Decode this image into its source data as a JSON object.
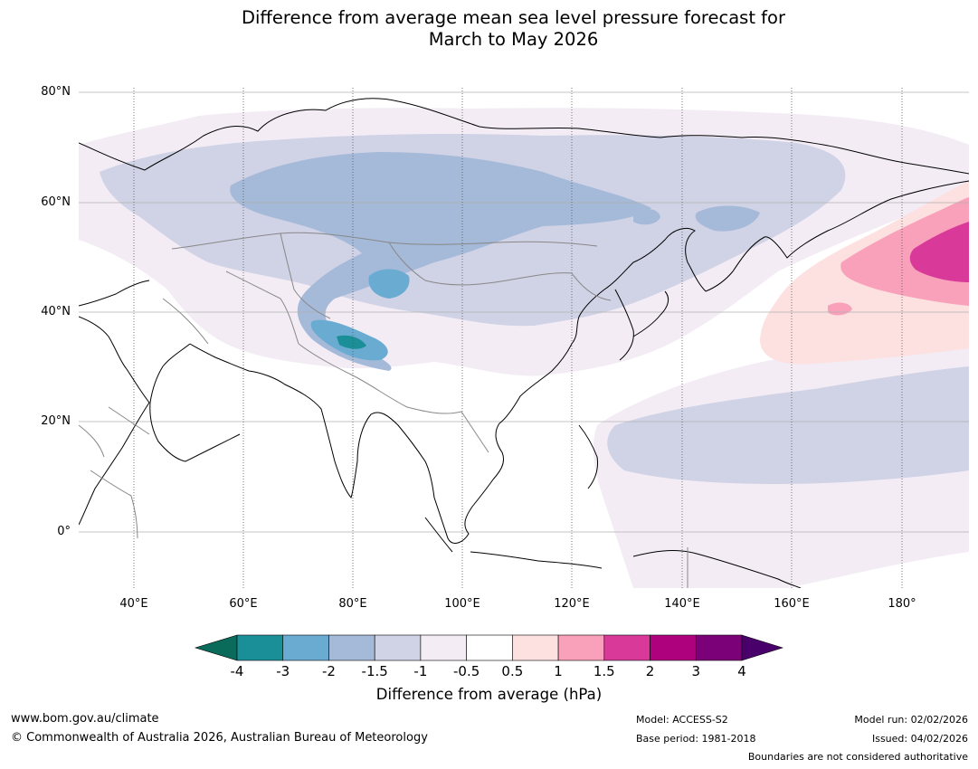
{
  "title": {
    "line1": "Difference from average mean sea level pressure forecast for",
    "line2": "March to May 2026"
  },
  "axes": {
    "lat_labels": [
      "80°N",
      "60°N",
      "40°N",
      "20°N",
      "0°"
    ],
    "lon_labels": [
      "40°E",
      "60°E",
      "80°E",
      "100°E",
      "120°E",
      "140°E",
      "160°E",
      "180°"
    ]
  },
  "colorbar": {
    "title": "Difference from average (hPa)",
    "tick_labels": [
      "-4",
      "-3",
      "-2",
      "-1.5",
      "-1",
      "-0.5",
      "0.5",
      "1",
      "1.5",
      "2",
      "3",
      "4"
    ],
    "colors": [
      "#0b6b5a",
      "#1b8f97",
      "#6aabd2",
      "#a5b9d8",
      "#d0d2e6",
      "#f3ecf5",
      "#ffffff",
      "#fde0e0",
      "#f9a0ba",
      "#d93a9a",
      "#ae017e",
      "#7a0177",
      "#49006a"
    ]
  },
  "colors": {
    "land_outline": "#000000",
    "border": "#888888",
    "grid": "#b0b0b0"
  },
  "footer": {
    "website": "www.bom.gov.au/climate",
    "copyright": "© Commonwealth of Australia 2026, Australian Bureau of Meteorology",
    "model": "Model: ACCESS-S2",
    "base_period": "Base period: 1981-2018",
    "model_run": "Model run: 02/02/2026",
    "issued": "Issued: 04/02/2026",
    "disclaimer": "Boundaries are not considered authoritative"
  }
}
